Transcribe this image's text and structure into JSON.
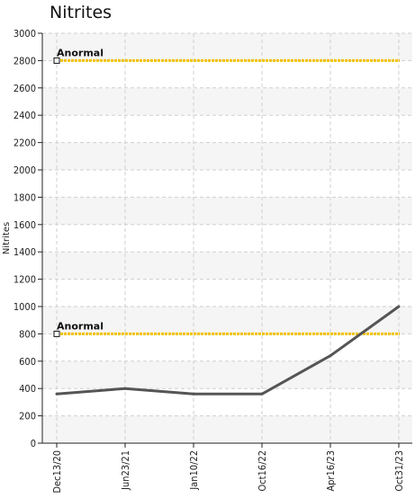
{
  "chart_data": {
    "type": "line",
    "title": "Nitrites",
    "xlabel": "",
    "ylabel": "Nitrites",
    "categories": [
      "Dec13/20",
      "Jun23/21",
      "Jan10/22",
      "Oct16/22",
      "Apr16/23",
      "Oct31/23"
    ],
    "series": [
      {
        "values": [
          360,
          400,
          360,
          360,
          640,
          1000
        ],
        "color": "#555555"
      }
    ],
    "ylim": [
      0,
      3000
    ],
    "yticks": [
      0,
      200,
      400,
      600,
      800,
      1000,
      1200,
      1400,
      1600,
      1800,
      2000,
      2200,
      2400,
      2600,
      2800,
      3000
    ],
    "grid": true,
    "reference_lines": [
      {
        "label": "Anormal",
        "value": 2800,
        "color": "#f2c200"
      },
      {
        "label": "Anormal",
        "value": 800,
        "color": "#f2c200"
      }
    ],
    "colors": {
      "band": "#f5f5f5",
      "grid": "#cfcfcf",
      "axis": "#222222"
    }
  }
}
